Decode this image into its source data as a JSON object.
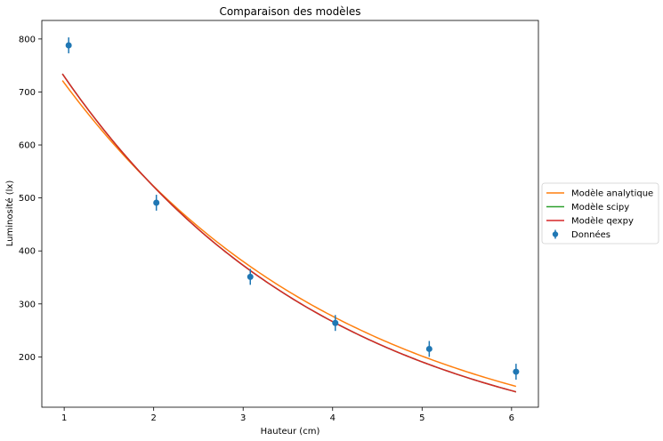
{
  "chart_data": {
    "type": "line",
    "title": "Comparaison des modèles",
    "xlabel": "Hauteur (cm)",
    "ylabel": "Luminosité (lx)",
    "xlim": [
      0.75,
      6.3
    ],
    "ylim": [
      105,
      835
    ],
    "xticks": [
      1,
      2,
      3,
      4,
      5,
      6
    ],
    "yticks": [
      200,
      300,
      400,
      500,
      600,
      700,
      800
    ],
    "grid": false,
    "legend_position": "right",
    "data_points": {
      "name": "Données",
      "color": "#1f77b4",
      "x": [
        1.05,
        2.03,
        3.08,
        4.03,
        5.08,
        6.05
      ],
      "y": [
        788,
        491,
        351,
        264,
        215,
        172
      ],
      "yerr": [
        15,
        15,
        15,
        15,
        15,
        15
      ]
    },
    "series": [
      {
        "name": "Modèle analytique",
        "color": "#ff7f0e",
        "model": {
          "a": 985,
          "b": 0.3174,
          "xmin": 0.98,
          "xmax": 6.05
        }
      },
      {
        "name": "Modèle scipy",
        "color": "#2ca02c",
        "model": {
          "a": 1020,
          "b": 0.3355,
          "xmin": 0.98,
          "xmax": 6.05
        }
      },
      {
        "name": "Modèle qexpy",
        "color": "#d62728",
        "model": {
          "a": 1020,
          "b": 0.3355,
          "xmin": 0.98,
          "xmax": 6.05
        }
      }
    ]
  }
}
